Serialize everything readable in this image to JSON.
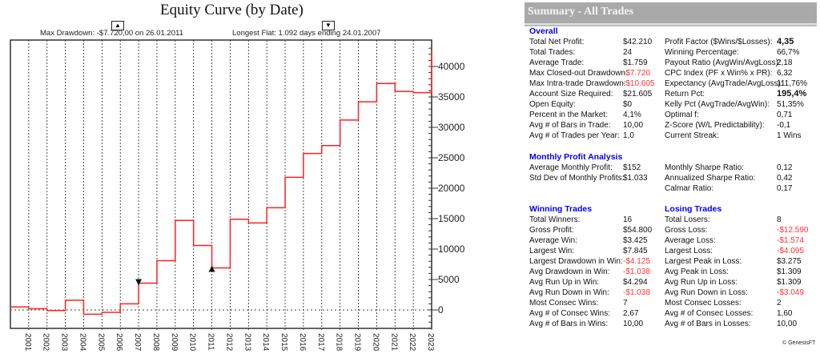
{
  "chart_data": {
    "type": "line",
    "title": "Equity Curve (by Date)",
    "max_drawdown_note": "Max Drawdown: -$7.720,00 on 26.01.2011",
    "longest_flat_note": "Longest Flat: 1.092 days ending 24.01.2007",
    "x_tick_labels": [
      "2001",
      "2002",
      "2003",
      "2004",
      "2005",
      "2006",
      "2007",
      "2008",
      "2009",
      "2010",
      "2011",
      "2012",
      "2013",
      "2014",
      "2015",
      "2016",
      "2017",
      "2018",
      "2019",
      "2020",
      "2021",
      "2022",
      "2023"
    ],
    "y_tick_labels": [
      "0",
      "5000",
      "10000",
      "15000",
      "20000",
      "25000",
      "30000",
      "35000",
      "40000"
    ],
    "ylim": [
      -3000,
      44000
    ],
    "xlim": [
      2000.0,
      2023.0
    ],
    "series": [
      {
        "name": "Equity",
        "color": "#ff2020",
        "steps": [
          [
            2000.0,
            500
          ],
          [
            2001.0,
            200
          ],
          [
            2002.0,
            -100
          ],
          [
            2003.0,
            1600
          ],
          [
            2004.0,
            -700
          ],
          [
            2005.0,
            -400
          ],
          [
            2006.0,
            1000
          ],
          [
            2007.0,
            4400
          ],
          [
            2008.0,
            8100
          ],
          [
            2009.0,
            14700
          ],
          [
            2010.0,
            10600
          ],
          [
            2011.0,
            6900
          ],
          [
            2012.0,
            14900
          ],
          [
            2013.0,
            14300
          ],
          [
            2014.0,
            16800
          ],
          [
            2015.0,
            21800
          ],
          [
            2016.0,
            25700
          ],
          [
            2017.0,
            27000
          ],
          [
            2018.0,
            31200
          ],
          [
            2019.0,
            34200
          ],
          [
            2020.0,
            37200
          ],
          [
            2021.0,
            35900
          ],
          [
            2022.0,
            35700
          ],
          [
            2023.0,
            42210
          ]
        ]
      }
    ],
    "markers": [
      {
        "type": "down",
        "x": 2007.0,
        "y": 4400
      },
      {
        "type": "up",
        "x": 2011.0,
        "y": 6900
      }
    ]
  },
  "summary": {
    "title": "Summary - All Trades",
    "overall_heading": "Overall",
    "overall": [
      [
        "Total Net Profit:",
        "$42.210",
        "Profit Factor ($Wins/$Losses):",
        "4,35"
      ],
      [
        "Total Trades:",
        "24",
        "Winning Percentage:",
        "66,7%"
      ],
      [
        "Average Trade:",
        "$1.759",
        "Payout Ratio (AvgWin/AvgLoss):",
        "2,18"
      ],
      [
        "Max Closed-out Drawdown:",
        "-$7.720",
        "CPC Index (PF x Win% x PR):",
        "6,32"
      ],
      [
        "Max Intra-trade Drawdown:",
        "-$10.605",
        "Expectancy (AvgTrade/AvgLoss):",
        "111,76%"
      ],
      [
        "Account Size Required:",
        "$21.605",
        "Return Pct:",
        "195,4%"
      ],
      [
        "Open Equity:",
        "$0",
        "Kelly Pct (AvgTrade/AvgWin):",
        "51,35%"
      ],
      [
        "Percent in the Market:",
        "4,1%",
        "Optimal f:",
        "0,71"
      ],
      [
        "Avg # of Bars in Trade:",
        "10,00",
        "Z-Score (W/L Predictability):",
        "-0,1"
      ],
      [
        "Avg # of Trades per Year:",
        "1,0",
        "Current Streak:",
        "1 Wins"
      ]
    ],
    "monthly_heading": "Monthly Profit Analysis",
    "monthly": [
      [
        "Average Monthly Profit:",
        "$152",
        "Monthly Sharpe Ratio:",
        "0,12"
      ],
      [
        "Std Dev of Monthly Profits:",
        "$1.033",
        "Annualized Sharpe Ratio:",
        "0,42"
      ],
      [
        "",
        "",
        "Calmar Ratio:",
        "0,17"
      ]
    ],
    "winning_heading": "Winning Trades",
    "losing_heading": "Losing Trades",
    "trades": [
      [
        "Total Winners:",
        "16",
        "Total Losers:",
        "8"
      ],
      [
        "Gross Profit:",
        "$54.800",
        "Gross Loss:",
        "-$12.590"
      ],
      [
        "Average Win:",
        "$3.425",
        "Average Loss:",
        "-$1.574"
      ],
      [
        "Largest Win:",
        "$7.845",
        "Largest Loss:",
        "-$4.095"
      ],
      [
        "Largest Drawdown in Win:",
        "-$4.125",
        "Largest Peak in Loss:",
        "$3.275"
      ],
      [
        "Avg Drawdown in Win:",
        "-$1.038",
        "Avg Peak in Loss:",
        "$1.309"
      ],
      [
        "Avg Run Up in Win:",
        "$4.294",
        "Avg Run Up in Loss:",
        "$1.309"
      ],
      [
        "Avg Run Down in Win:",
        "-$1.038",
        "Avg Run Down in Loss:",
        "-$3.049"
      ],
      [
        "Most Consec Wins:",
        "7",
        "Most Consec Losses:",
        "2"
      ],
      [
        "Avg # of Consec Wins:",
        "2,67",
        "Avg # of Consec Losses:",
        "1,60"
      ],
      [
        "Avg # of Bars in Wins:",
        "10,00",
        "Avg # of Bars in Losses:",
        "10,00"
      ]
    ],
    "copyright": "© GenesisFT"
  },
  "colors": {
    "negative": "#ff3333",
    "heading": "#0000ee",
    "equity": "#ff2020"
  }
}
